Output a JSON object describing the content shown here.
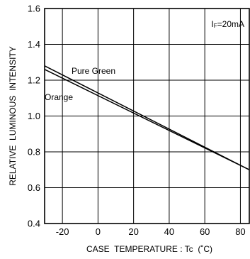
{
  "chart_data": {
    "type": "line",
    "title": "",
    "xlabel": "CASE  TEMPERATURE : Tc  (˚C)",
    "ylabel": "RELATIVE  LUMINOUS  INTENSITY",
    "annotation": "IF=20mA",
    "xlim": [
      -30,
      85
    ],
    "ylim": [
      0.4,
      1.6
    ],
    "x_ticks": [
      -20,
      0,
      20,
      40,
      60,
      80
    ],
    "x_tick_labels": [
      "-20",
      "0",
      "20",
      "40",
      "60",
      "80"
    ],
    "y_ticks": [
      0.4,
      0.6,
      0.8,
      1.0,
      1.2,
      1.4,
      1.6
    ],
    "y_tick_labels": [
      "0.4",
      "0.6",
      "0.8",
      "1.0",
      "1.2",
      "1.4",
      "1.6"
    ],
    "grid": true,
    "series": [
      {
        "name": "Pure Green",
        "x": [
          -30,
          85
        ],
        "y": [
          1.28,
          0.7
        ]
      },
      {
        "name": "Orange",
        "x": [
          -30,
          85
        ],
        "y": [
          1.26,
          0.7
        ]
      }
    ]
  }
}
